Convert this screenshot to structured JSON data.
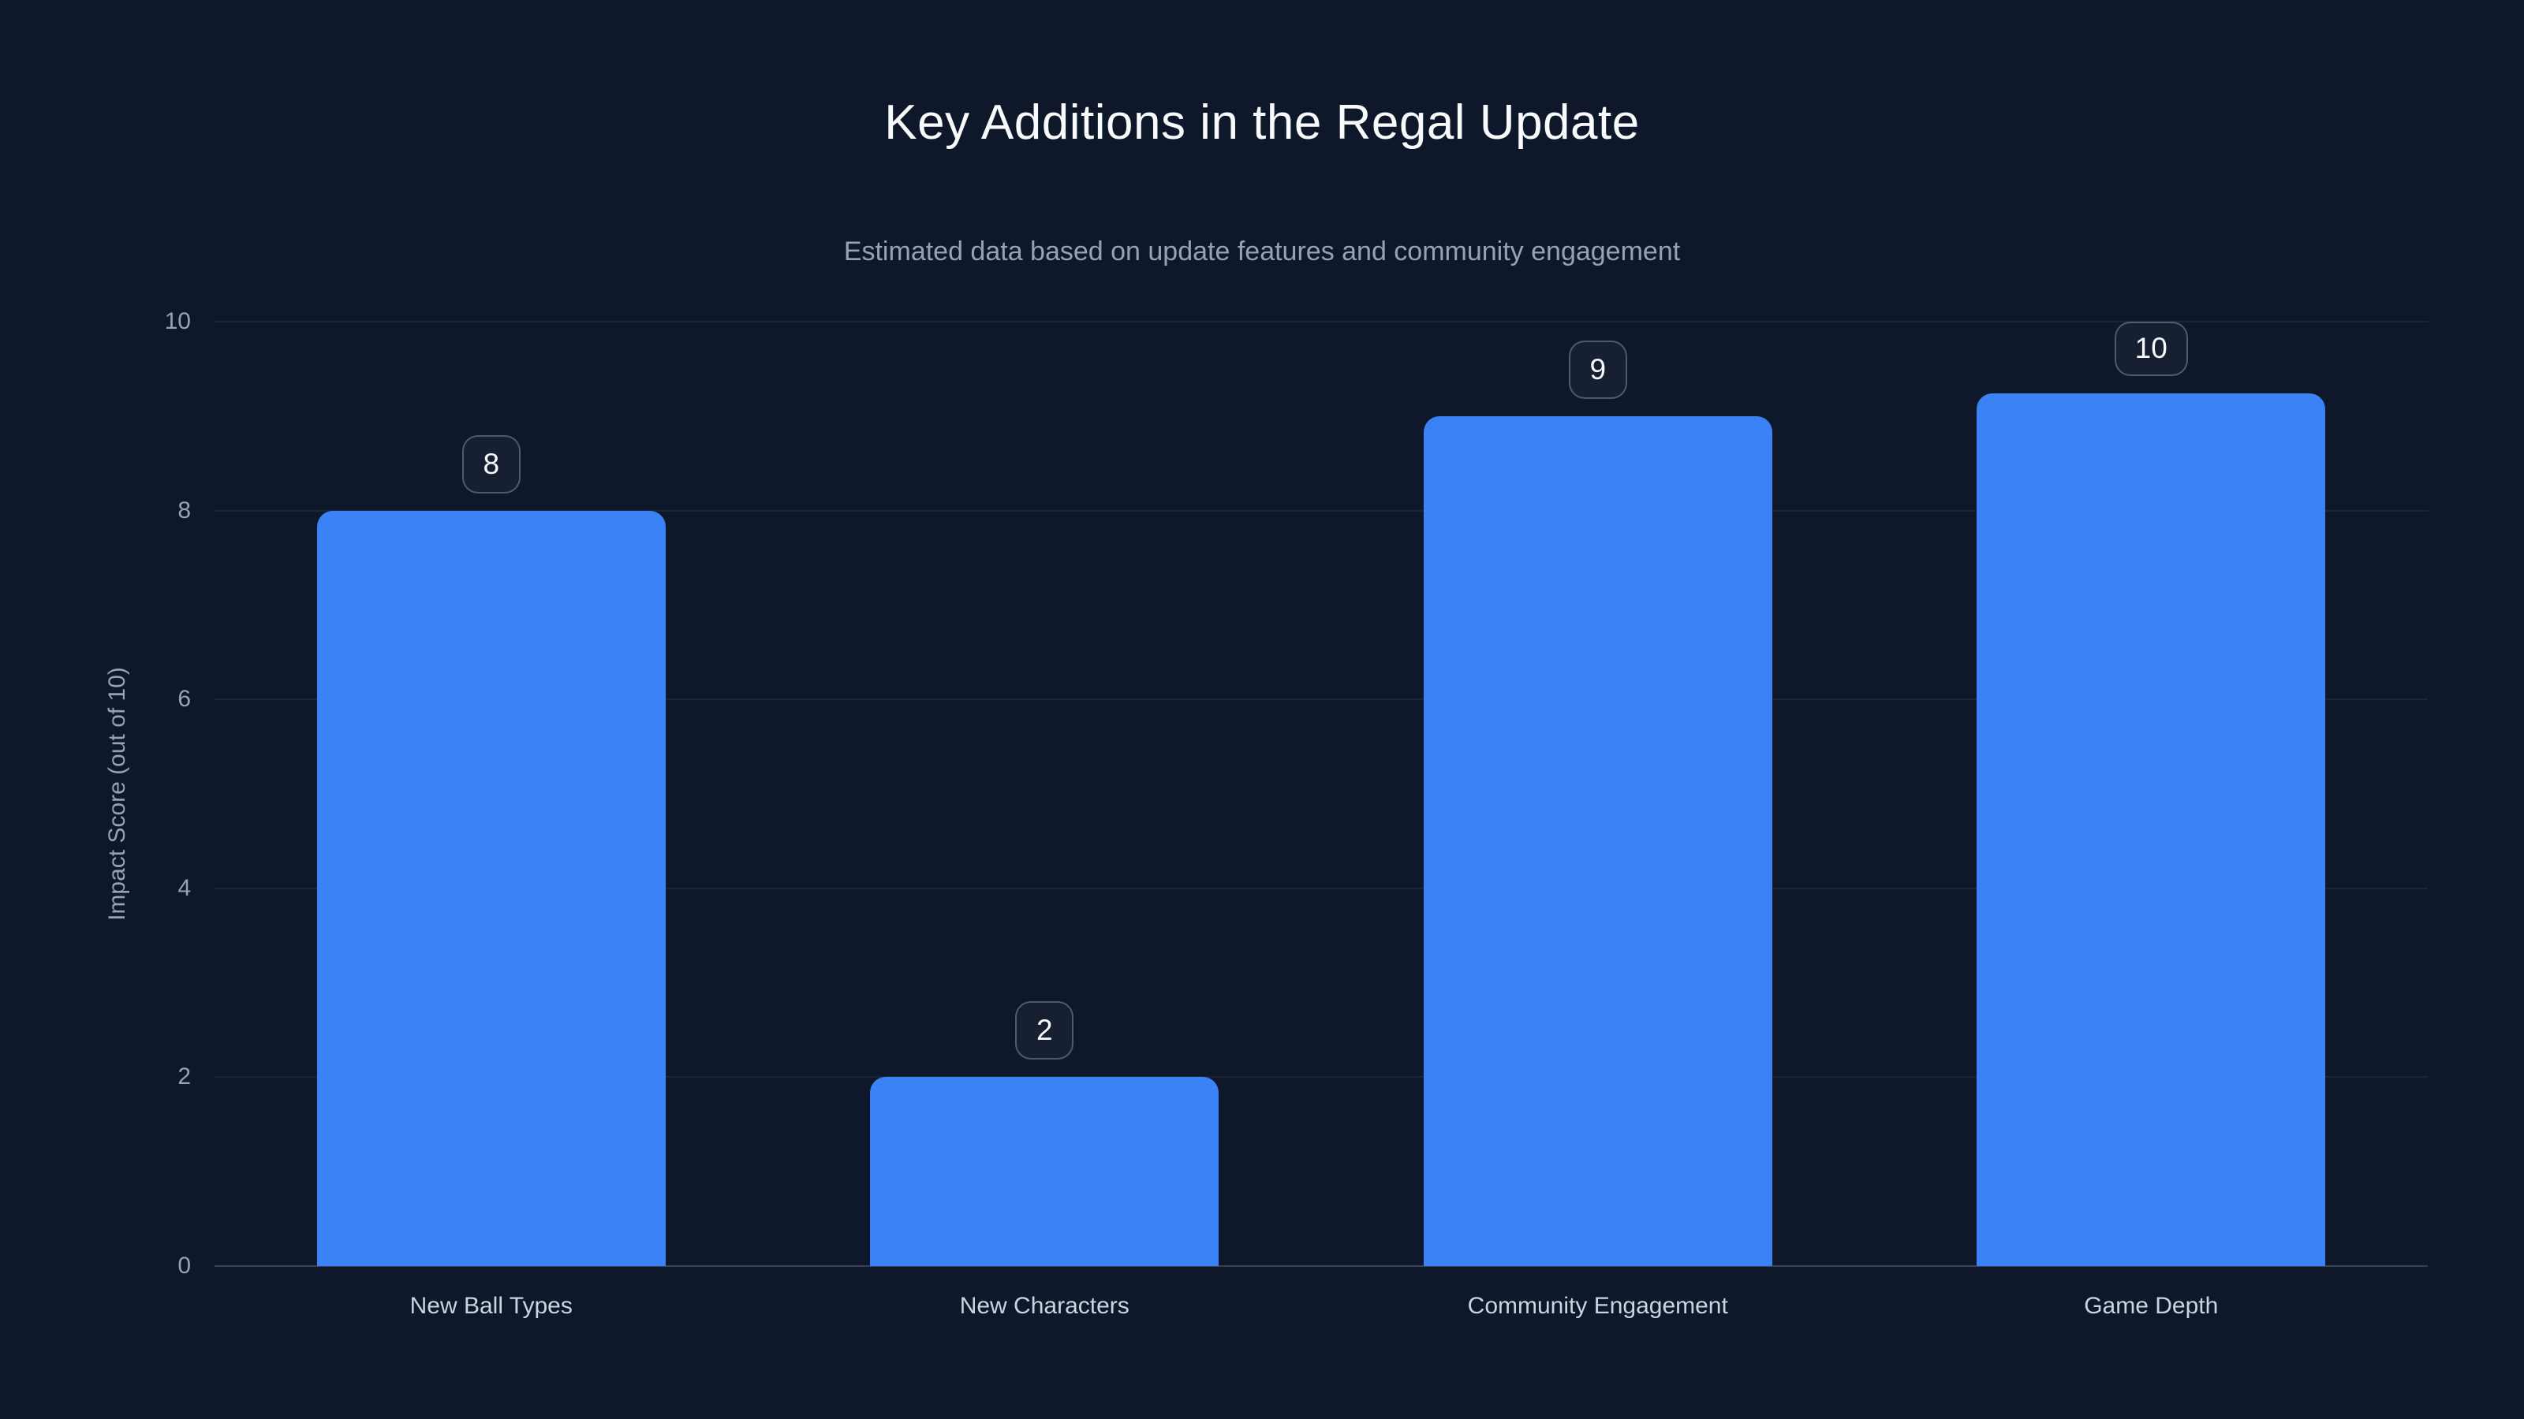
{
  "page": {
    "background_color": "#0f172a"
  },
  "chart_data": {
    "type": "bar",
    "title": "Key Additions in the Regal Update",
    "subtitle": "Estimated data based on update features and community engagement",
    "categories": [
      "New Ball Types",
      "New Characters",
      "Community Engagement",
      "Game Depth"
    ],
    "values": [
      8,
      2,
      9,
      10
    ],
    "value_labels": [
      "8",
      "2",
      "9",
      "10"
    ],
    "xlabel": "",
    "ylabel": "Impact Score (out of 10)",
    "ylim": [
      0,
      10
    ],
    "yticks": [
      0,
      2,
      4,
      6,
      8,
      10
    ],
    "grid": true,
    "legend": false,
    "bar_color": "#3b82f6",
    "colors": {
      "background": "#0f172a",
      "title_text": "#f8fafc",
      "subtitle_text": "#94a3b8",
      "tick_text": "#94a3b8",
      "category_text": "#cbd5e1",
      "gridline": "rgba(148,163,184,0.10)",
      "axis_line": "rgba(148,163,184,0.30)",
      "badge_border": "rgba(148,163,184,0.45)",
      "badge_text": "#f8fafc"
    }
  }
}
